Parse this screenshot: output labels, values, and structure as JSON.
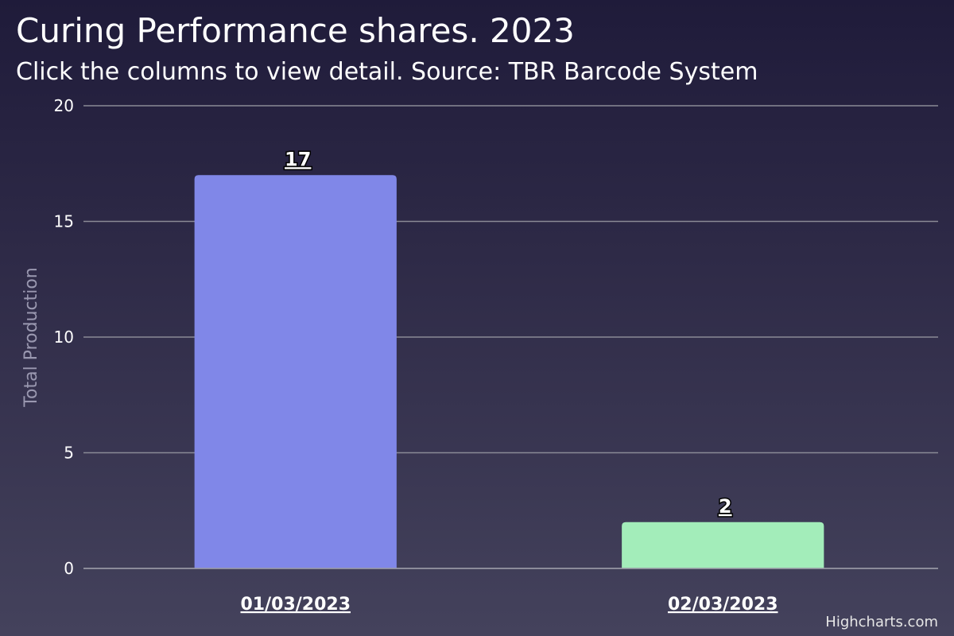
{
  "title": "Curing Performance shares. 2023",
  "subtitle": "Click the columns to view detail. Source: TBR Barcode System",
  "credits": "Highcharts.com",
  "chart_data": {
    "type": "bar",
    "title": "Curing Performance shares. 2023",
    "subtitle": "Click the columns to view detail. Source: TBR Barcode System",
    "xlabel": "",
    "ylabel": "Total Production",
    "categories": [
      "01/03/2023",
      "02/03/2023"
    ],
    "values": [
      17,
      2
    ],
    "colors": [
      "#8087e8",
      "#a3edba"
    ],
    "ylim": [
      0,
      20
    ],
    "yticks": [
      0,
      5,
      10,
      15,
      20
    ],
    "grid": true,
    "legend": "none",
    "data_labels": true
  }
}
